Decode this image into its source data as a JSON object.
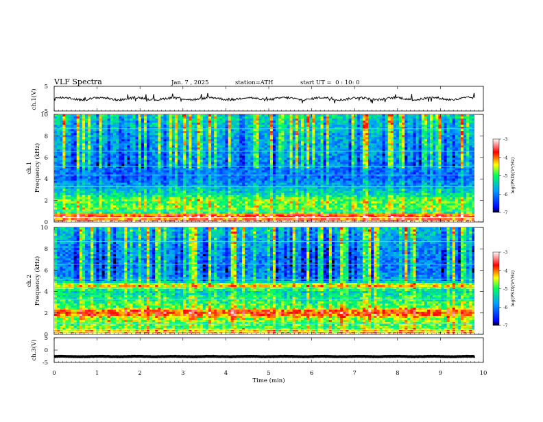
{
  "header": {
    "title": "VLF Spectra",
    "date": "Jan. 7 , 2025",
    "station": "station=ATH",
    "start": "start UT =  0 : 10: 0"
  },
  "chart_data": [
    {
      "type": "line",
      "panel": "ch1-waveform",
      "ylabel": "ch.1(V)",
      "ylim": [
        -5,
        5
      ],
      "yticks": [
        "5",
        "-5"
      ],
      "xlim": [
        0,
        10
      ],
      "series_color": "#000000",
      "mean_value": 0.0,
      "amplitude": 0.9
    },
    {
      "type": "heatmap",
      "panel": "ch1-spectrogram",
      "ylabel": [
        "ch.1",
        "Frequency (kHz)"
      ],
      "ylim": [
        0,
        10
      ],
      "yticks": [
        "0",
        "2",
        "4",
        "6",
        "8",
        "10"
      ],
      "xlim": [
        0,
        9.8
      ],
      "band_levels": [
        {
          "f": 0.2,
          "level": -4.0
        },
        {
          "f": 0.6,
          "level": -3.6
        },
        {
          "f": 0.9,
          "level": -5.2
        },
        {
          "f": 1.3,
          "level": -4.7
        },
        {
          "f": 1.6,
          "level": -4.9
        },
        {
          "f": 2.0,
          "level": -4.7
        },
        {
          "f": 2.5,
          "level": -5.3
        },
        {
          "f": 3.0,
          "level": -5.6
        },
        {
          "f": 3.6,
          "level": -5.9
        },
        {
          "f": 4.2,
          "level": -6.2
        },
        {
          "f": 5.0,
          "level": -6.0
        },
        {
          "f": 6.0,
          "level": -5.9
        },
        {
          "f": 7.0,
          "level": -5.8
        },
        {
          "f": 8.0,
          "level": -5.7
        },
        {
          "f": 9.0,
          "level": -5.5
        },
        {
          "f": 10.0,
          "level": -5.3
        }
      ],
      "colorbar": {
        "label": "log(PSD)(V²/Hz)",
        "min": -7,
        "max": -3,
        "ticks": [
          "-3",
          "-4",
          "-5",
          "-6",
          "-7"
        ]
      }
    },
    {
      "type": "heatmap",
      "panel": "ch2-spectrogram",
      "ylabel": [
        "ch.2",
        "Frequency (kHz)"
      ],
      "ylim": [
        0,
        10
      ],
      "yticks": [
        "0",
        "2",
        "4",
        "6",
        "8",
        "10"
      ],
      "xlim": [
        0,
        9.8
      ],
      "band_levels": [
        {
          "f": 0.2,
          "level": -4.2
        },
        {
          "f": 0.6,
          "level": -4.9
        },
        {
          "f": 1.0,
          "level": -4.8
        },
        {
          "f": 1.5,
          "level": -4.6
        },
        {
          "f": 1.9,
          "level": -3.9
        },
        {
          "f": 2.1,
          "level": -3.7
        },
        {
          "f": 2.5,
          "level": -4.8
        },
        {
          "f": 3.0,
          "level": -5.0
        },
        {
          "f": 3.5,
          "level": -5.1
        },
        {
          "f": 4.0,
          "level": -5.4
        },
        {
          "f": 4.6,
          "level": -4.2
        },
        {
          "f": 5.0,
          "level": -5.8
        },
        {
          "f": 6.0,
          "level": -6.0
        },
        {
          "f": 7.0,
          "level": -6.0
        },
        {
          "f": 8.0,
          "level": -5.9
        },
        {
          "f": 9.0,
          "level": -5.7
        },
        {
          "f": 10.0,
          "level": -5.5
        }
      ],
      "colorbar": {
        "label": "log(PSD)(V²/Hz)",
        "min": -7,
        "max": -3,
        "ticks": [
          "-3",
          "-4",
          "-5",
          "-6",
          "-7"
        ]
      }
    },
    {
      "type": "line",
      "panel": "ch3-waveform",
      "ylabel": "ch.3(V)",
      "ylim": [
        -5,
        5
      ],
      "yticks": [
        "5",
        "0",
        "-5"
      ],
      "xlim": [
        0,
        10
      ],
      "series_color": "#000000",
      "mean_value": -2.6,
      "amplitude": 0.15
    }
  ],
  "xaxis": {
    "label": "Time (min)",
    "ticks": [
      "0",
      "1",
      "2",
      "3",
      "4",
      "5",
      "6",
      "7",
      "8",
      "9",
      "10"
    ]
  },
  "colorbar_colors": [
    "#000000",
    "#0000ff",
    "#00c0ff",
    "#00ff60",
    "#ffff00",
    "#ff0000",
    "#ffffff"
  ]
}
